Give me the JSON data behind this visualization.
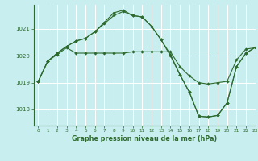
{
  "title": "Graphe pression niveau de la mer (hPa)",
  "background_color": "#c8eef0",
  "grid_color": "#ffffff",
  "line_color": "#2d6a2d",
  "xlim": [
    -0.5,
    23
  ],
  "ylim": [
    1017.4,
    1021.9
  ],
  "yticks": [
    1018,
    1019,
    1020,
    1021
  ],
  "xticks": [
    0,
    1,
    2,
    3,
    4,
    5,
    6,
    7,
    8,
    9,
    10,
    11,
    12,
    13,
    14,
    15,
    16,
    17,
    18,
    19,
    20,
    21,
    22,
    23
  ],
  "line1": {
    "x": [
      0,
      1,
      2,
      3,
      4,
      5,
      6,
      7,
      8,
      9,
      10,
      11,
      12,
      13,
      14,
      15,
      16,
      17,
      18,
      19,
      20,
      21,
      22,
      23
    ],
    "y": [
      1019.05,
      1019.8,
      1020.05,
      1020.3,
      1020.1,
      1020.1,
      1020.1,
      1020.1,
      1020.1,
      1020.1,
      1020.15,
      1020.15,
      1020.15,
      1020.15,
      1020.15,
      1019.6,
      1019.25,
      1019.0,
      1018.95,
      1019.0,
      1019.05,
      1019.85,
      1020.25,
      1020.3
    ]
  },
  "line2": {
    "x": [
      0,
      1,
      2,
      3,
      4,
      5,
      6,
      7,
      8,
      9,
      10,
      11,
      12,
      13,
      14,
      15,
      16,
      17,
      18,
      19,
      20,
      21,
      22,
      23
    ],
    "y": [
      1019.05,
      1019.8,
      1020.1,
      1020.35,
      1020.55,
      1020.65,
      1020.9,
      1021.25,
      1021.6,
      1021.7,
      1021.5,
      1021.45,
      1021.1,
      1020.6,
      1020.05,
      1019.3,
      1018.65,
      1017.75,
      1017.72,
      1017.78,
      1018.25,
      1019.6,
      1020.1,
      1020.32
    ]
  },
  "line3": {
    "x": [
      0,
      1,
      2,
      3,
      4,
      5,
      6,
      7,
      8,
      9,
      10,
      11,
      12,
      13,
      14,
      15,
      16,
      17,
      18,
      19,
      20,
      21,
      22,
      23
    ],
    "y": [
      1019.05,
      1019.8,
      1020.1,
      1020.35,
      1020.55,
      1020.65,
      1020.9,
      1021.2,
      1021.5,
      1021.65,
      1021.5,
      1021.45,
      1021.1,
      1020.6,
      1020.0,
      1019.3,
      1018.65,
      1017.75,
      1017.72,
      1017.78,
      1018.25,
      1019.6,
      1020.1,
      1020.32
    ]
  }
}
